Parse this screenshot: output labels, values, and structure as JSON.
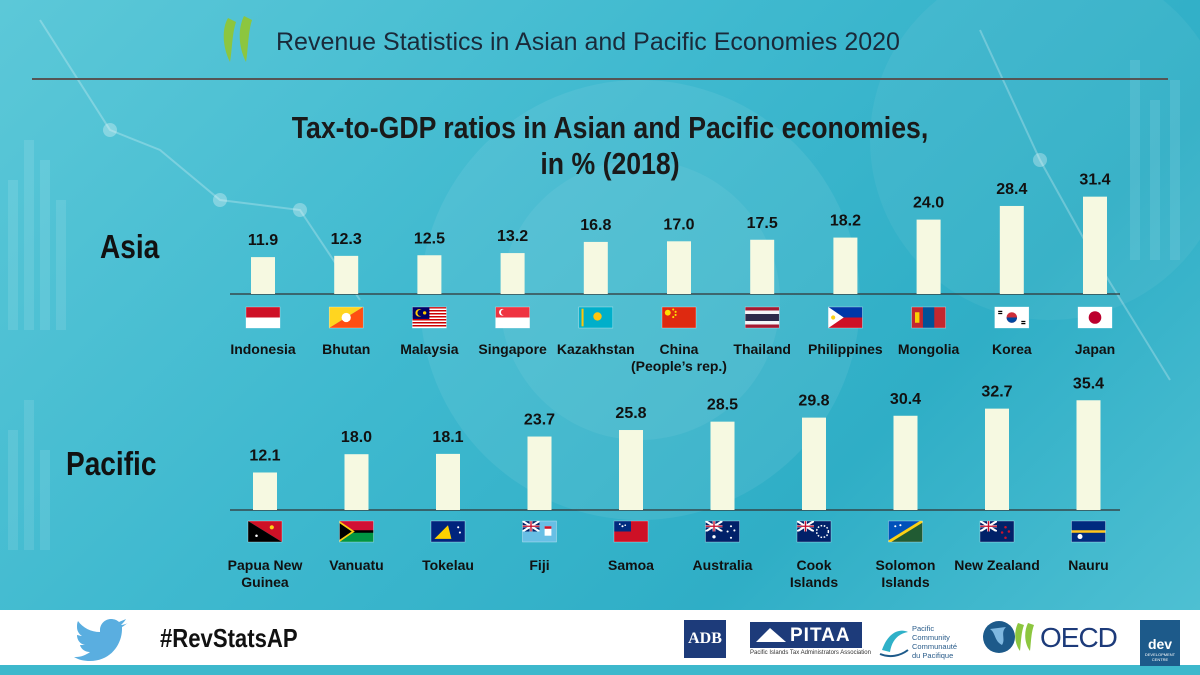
{
  "header": {
    "title": "Revenue Statistics in Asian and Pacific Economies 2020",
    "logo_color": "#8cc63f"
  },
  "footer": {
    "hashtag": "#RevStatsAP",
    "adb_label": "ADB",
    "pitaa_label": "PITAA",
    "pitaa_subtitle": "Pacific Islands Tax Administrators Association",
    "spc_line1": "Pacific",
    "spc_line2": "Community",
    "spc_line3": "Communauté",
    "spc_line4": "du Pacifique",
    "oecd_label": "OECD",
    "dev_label": "dev",
    "dev_sub": "DEVELOPMENT CENTRE"
  },
  "colors": {
    "bar_fill": "#f6f9e1",
    "axis": "#333333",
    "accent": "#2fb1c8"
  },
  "chart_data": {
    "type": "bar",
    "title": [
      "Tax-to-GDP ratios in Asian and Pacific economies,",
      "in % (2018)"
    ],
    "xlabel": "",
    "ylabel": "",
    "ylim": [
      0,
      40
    ],
    "grid": false,
    "panels": [
      {
        "region": "Asia",
        "categories": [
          {
            "name": "Indonesia",
            "sub": "",
            "value": 11.9,
            "flag": "indonesia-flag"
          },
          {
            "name": "Bhutan",
            "sub": "",
            "value": 12.3,
            "flag": "bhutan-flag"
          },
          {
            "name": "Malaysia",
            "sub": "",
            "value": 12.5,
            "flag": "malaysia-flag"
          },
          {
            "name": "Singapore",
            "sub": "",
            "value": 13.2,
            "flag": "singapore-flag"
          },
          {
            "name": "Kazakhstan",
            "sub": "",
            "value": 16.8,
            "flag": "kazakhstan-flag"
          },
          {
            "name": "China",
            "sub": "(People’s rep.)",
            "value": 17.0,
            "flag": "china-flag"
          },
          {
            "name": "Thailand",
            "sub": "",
            "value": 17.5,
            "flag": "thailand-flag"
          },
          {
            "name": "Philippines",
            "sub": "",
            "value": 18.2,
            "flag": "philippines-flag"
          },
          {
            "name": "Mongolia",
            "sub": "",
            "value": 24.0,
            "flag": "mongolia-flag"
          },
          {
            "name": "Korea",
            "sub": "",
            "value": 28.4,
            "flag": "korea-flag"
          },
          {
            "name": "Japan",
            "sub": "",
            "value": 31.4,
            "flag": "japan-flag"
          }
        ]
      },
      {
        "region": "Pacific",
        "categories": [
          {
            "name": "Papua New",
            "sub": "Guinea",
            "value": 12.1,
            "flag": "papua-new-guinea-flag"
          },
          {
            "name": "Vanuatu",
            "sub": "",
            "value": 18.0,
            "flag": "vanuatu-flag"
          },
          {
            "name": "Tokelau",
            "sub": "",
            "value": 18.1,
            "flag": "tokelau-flag"
          },
          {
            "name": "Fiji",
            "sub": "",
            "value": 23.7,
            "flag": "fiji-flag"
          },
          {
            "name": "Samoa",
            "sub": "",
            "value": 25.8,
            "flag": "samoa-flag"
          },
          {
            "name": "Australia",
            "sub": "",
            "value": 28.5,
            "flag": "australia-flag"
          },
          {
            "name": "Cook",
            "sub": "Islands",
            "value": 29.8,
            "flag": "cook-islands-flag"
          },
          {
            "name": "Solomon",
            "sub": "Islands",
            "value": 30.4,
            "flag": "solomon-islands-flag"
          },
          {
            "name": "New Zealand",
            "sub": "",
            "value": 32.7,
            "flag": "new-zealand-flag"
          },
          {
            "name": "Nauru",
            "sub": "",
            "value": 35.4,
            "flag": "nauru-flag"
          }
        ]
      }
    ]
  }
}
